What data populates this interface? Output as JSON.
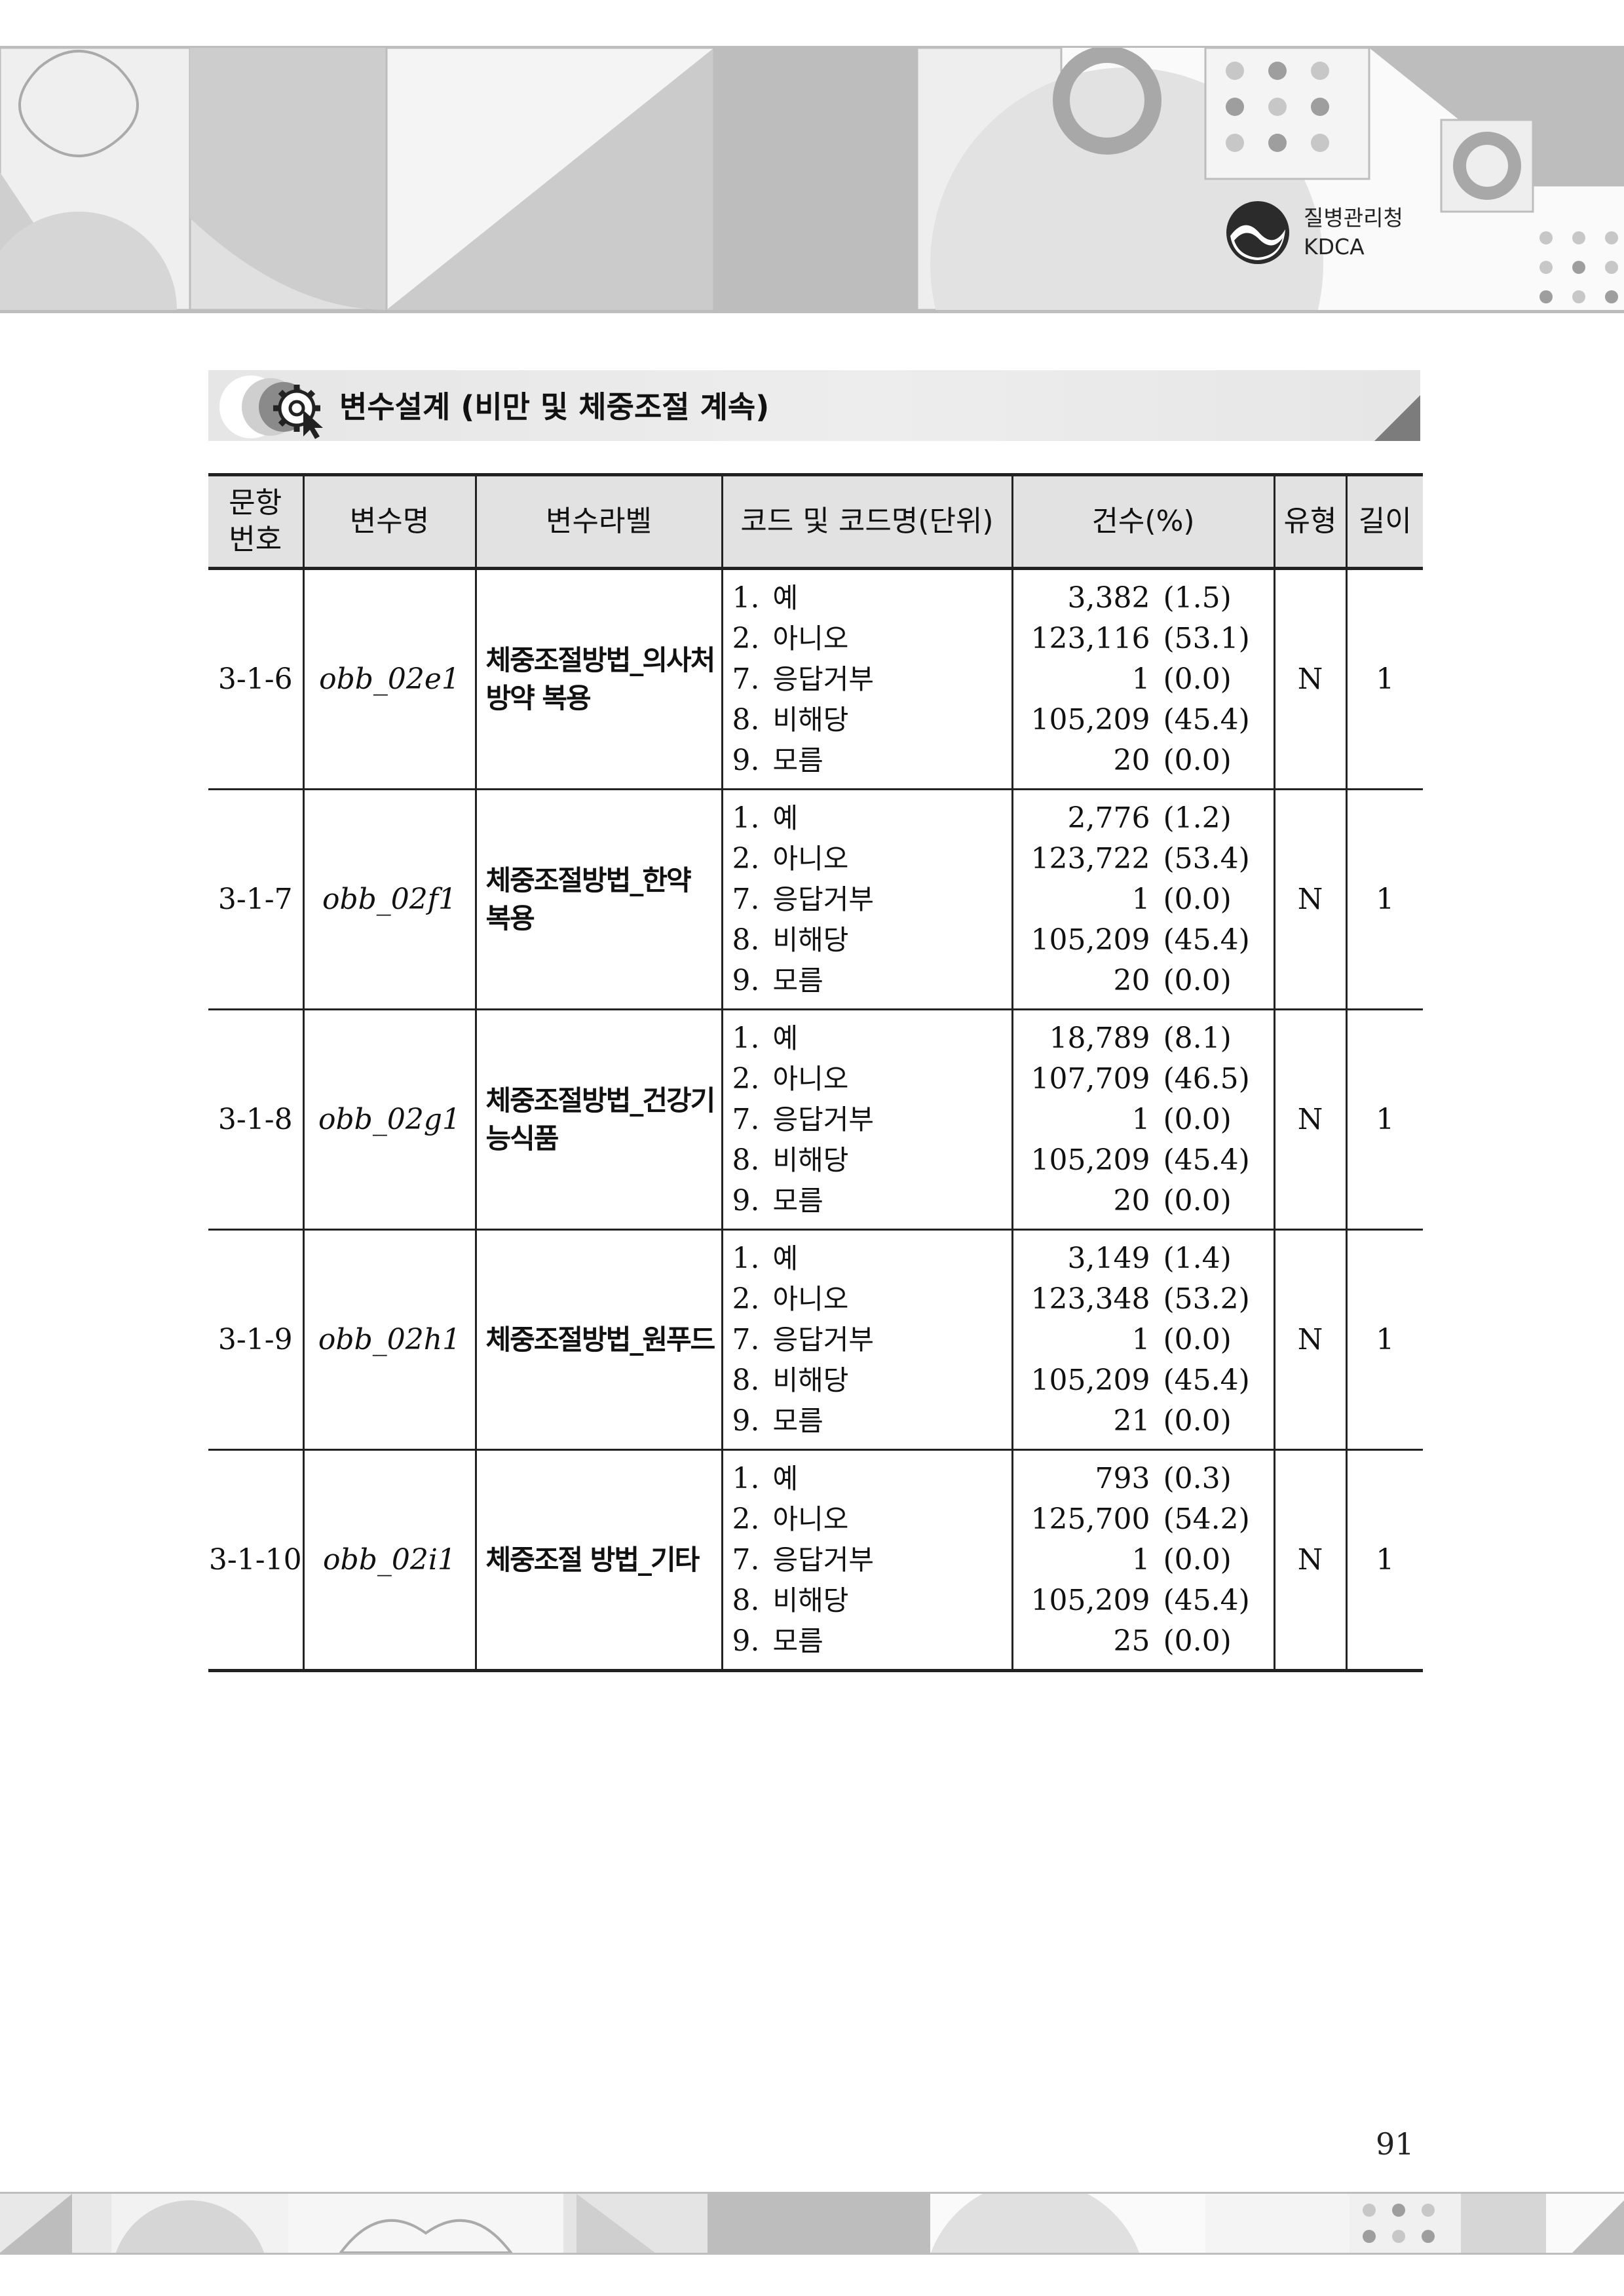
{
  "organization": {
    "name_ko": "질병관리청",
    "name_en": "KDCA"
  },
  "section_title": "변수설계 (비만 및 체중조절 계속)",
  "table": {
    "headers": [
      "문항\n번호",
      "변수명",
      "변수라벨",
      "코드 및 코드명(단위)",
      "건수(%)",
      "유형",
      "길이"
    ],
    "header_lines": {
      "item_no": [
        "문항",
        "번호"
      ]
    },
    "rows": [
      {
        "item_no": "3-1-6",
        "var_name": "obb_02e1",
        "label_lines": [
          "체중조절방법_의사처",
          "방약 복용"
        ],
        "codes": [
          {
            "num": "1.",
            "name": "예"
          },
          {
            "num": "2.",
            "name": "아니오"
          },
          {
            "num": "7.",
            "name": "응답거부"
          },
          {
            "num": "8.",
            "name": "비해당"
          },
          {
            "num": "9.",
            "name": "모름"
          }
        ],
        "counts": [
          {
            "n": "3,382",
            "pct": "(1.5)"
          },
          {
            "n": "123,116",
            "pct": "(53.1)"
          },
          {
            "n": "1",
            "pct": "(0.0)"
          },
          {
            "n": "105,209",
            "pct": "(45.4)"
          },
          {
            "n": "20",
            "pct": "(0.0)"
          }
        ],
        "type": "N",
        "length": "1"
      },
      {
        "item_no": "3-1-7",
        "var_name": "obb_02f1",
        "label_lines": [
          "체중조절방법_한약",
          "복용"
        ],
        "codes": [
          {
            "num": "1.",
            "name": "예"
          },
          {
            "num": "2.",
            "name": "아니오"
          },
          {
            "num": "7.",
            "name": "응답거부"
          },
          {
            "num": "8.",
            "name": "비해당"
          },
          {
            "num": "9.",
            "name": "모름"
          }
        ],
        "counts": [
          {
            "n": "2,776",
            "pct": "(1.2)"
          },
          {
            "n": "123,722",
            "pct": "(53.4)"
          },
          {
            "n": "1",
            "pct": "(0.0)"
          },
          {
            "n": "105,209",
            "pct": "(45.4)"
          },
          {
            "n": "20",
            "pct": "(0.0)"
          }
        ],
        "type": "N",
        "length": "1"
      },
      {
        "item_no": "3-1-8",
        "var_name": "obb_02g1",
        "label_lines": [
          "체중조절방법_건강기",
          "능식품"
        ],
        "codes": [
          {
            "num": "1.",
            "name": "예"
          },
          {
            "num": "2.",
            "name": "아니오"
          },
          {
            "num": "7.",
            "name": "응답거부"
          },
          {
            "num": "8.",
            "name": "비해당"
          },
          {
            "num": "9.",
            "name": "모름"
          }
        ],
        "counts": [
          {
            "n": "18,789",
            "pct": "(8.1)"
          },
          {
            "n": "107,709",
            "pct": "(46.5)"
          },
          {
            "n": "1",
            "pct": "(0.0)"
          },
          {
            "n": "105,209",
            "pct": "(45.4)"
          },
          {
            "n": "20",
            "pct": "(0.0)"
          }
        ],
        "type": "N",
        "length": "1"
      },
      {
        "item_no": "3-1-9",
        "var_name": "obb_02h1",
        "label_lines": [
          "체중조절방법_원푸드"
        ],
        "codes": [
          {
            "num": "1.",
            "name": "예"
          },
          {
            "num": "2.",
            "name": "아니오"
          },
          {
            "num": "7.",
            "name": "응답거부"
          },
          {
            "num": "8.",
            "name": "비해당"
          },
          {
            "num": "9.",
            "name": "모름"
          }
        ],
        "counts": [
          {
            "n": "3,149",
            "pct": "(1.4)"
          },
          {
            "n": "123,348",
            "pct": "(53.2)"
          },
          {
            "n": "1",
            "pct": "(0.0)"
          },
          {
            "n": "105,209",
            "pct": "(45.4)"
          },
          {
            "n": "21",
            "pct": "(0.0)"
          }
        ],
        "type": "N",
        "length": "1"
      },
      {
        "item_no": "3-1-10",
        "var_name": "obb_02i1",
        "label_lines": [
          "체중조절 방법_기타"
        ],
        "codes": [
          {
            "num": "1.",
            "name": "예"
          },
          {
            "num": "2.",
            "name": "아니오"
          },
          {
            "num": "7.",
            "name": "응답거부"
          },
          {
            "num": "8.",
            "name": "비해당"
          },
          {
            "num": "9.",
            "name": "모름"
          }
        ],
        "counts": [
          {
            "n": "793",
            "pct": "(0.3)"
          },
          {
            "n": "125,700",
            "pct": "(54.2)"
          },
          {
            "n": "1",
            "pct": "(0.0)"
          },
          {
            "n": "105,209",
            "pct": "(45.4)"
          },
          {
            "n": "25",
            "pct": "(0.0)"
          }
        ],
        "type": "N",
        "length": "1"
      }
    ]
  },
  "page_number": "91"
}
